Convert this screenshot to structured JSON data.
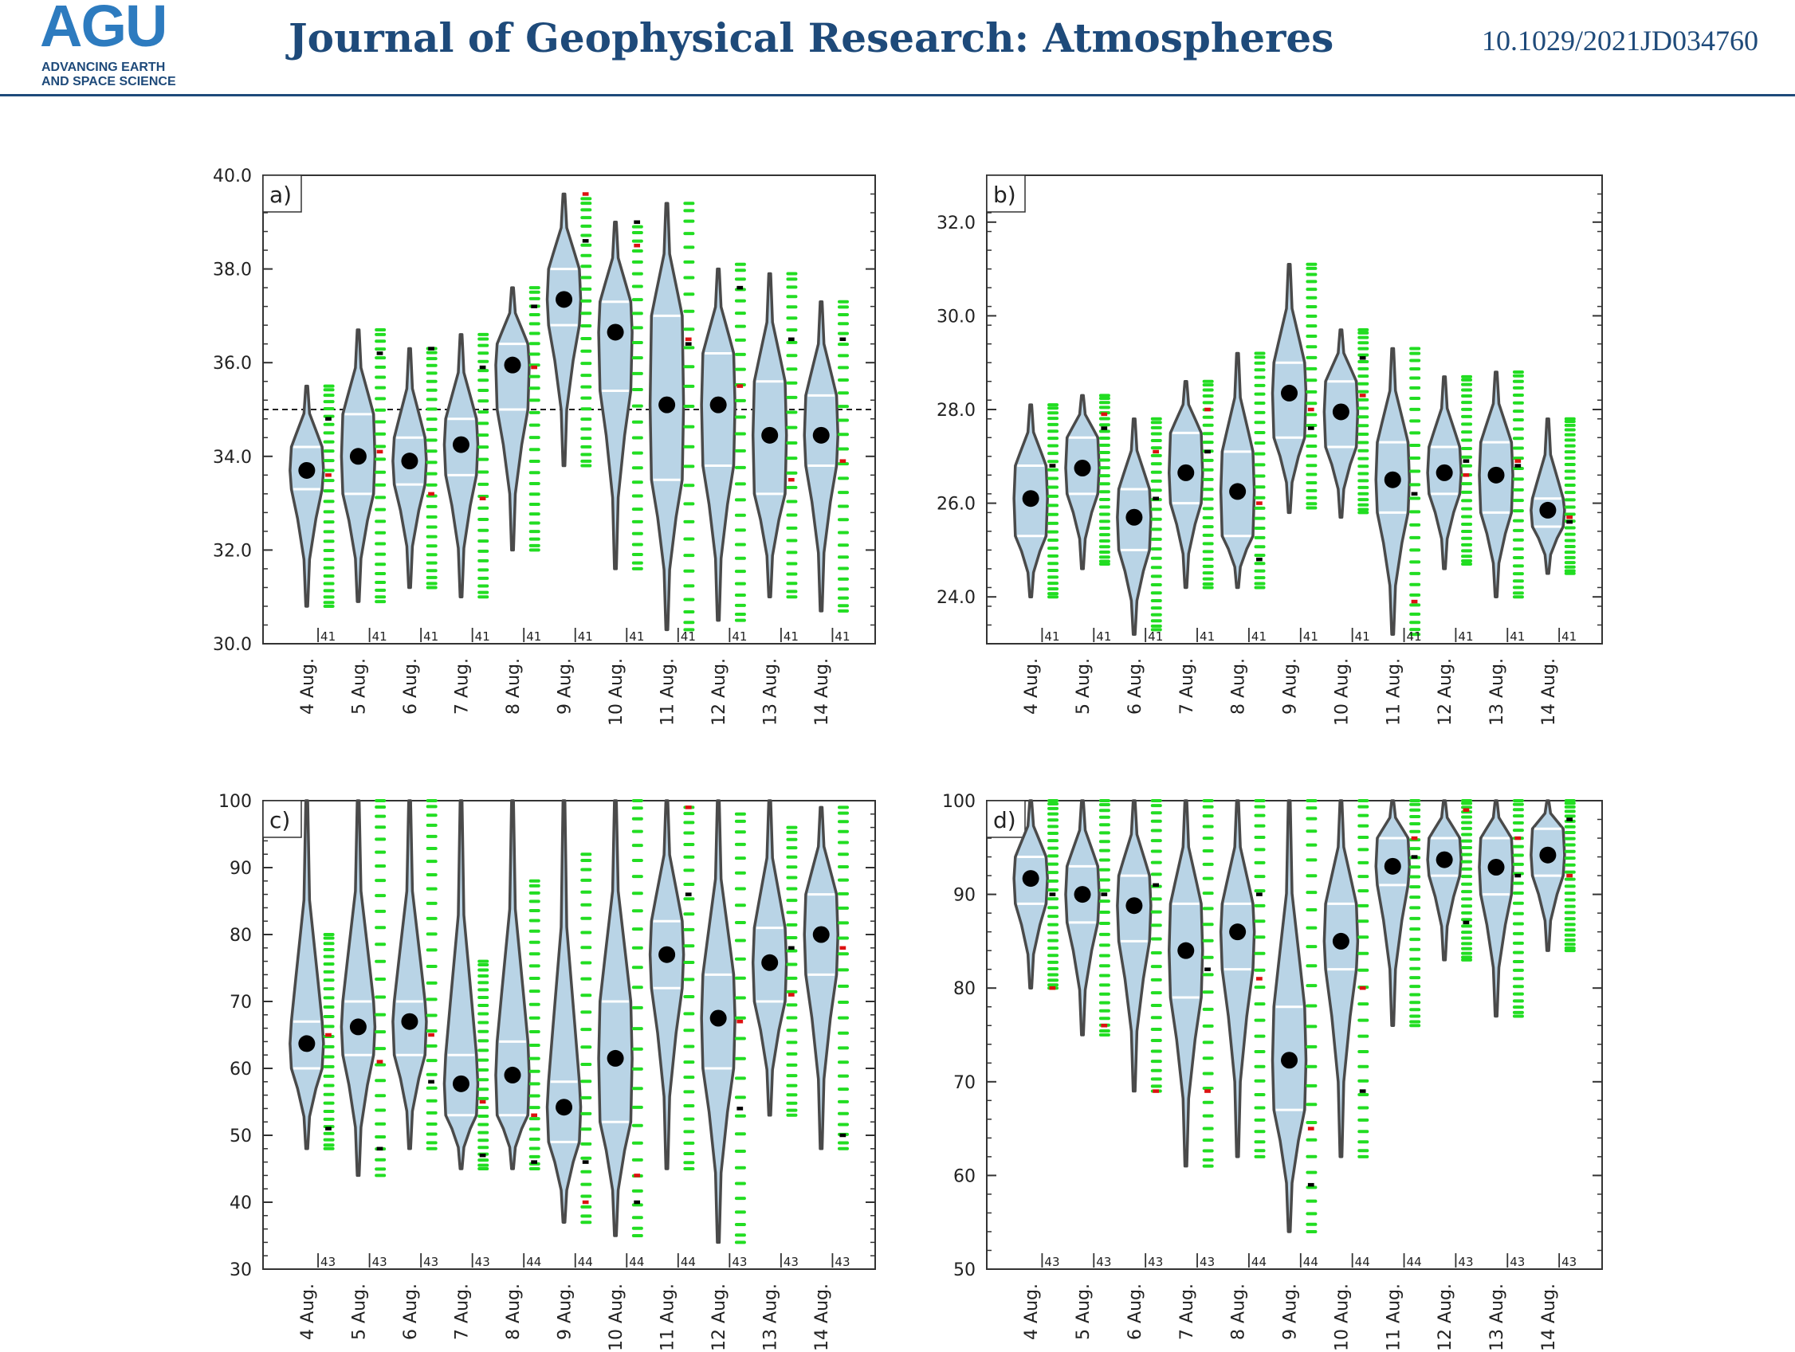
{
  "header": {
    "logo_text": "AGU",
    "logo_line1": "ADVANCING EARTH",
    "logo_line2": "AND SPACE SCIENCE",
    "journal": "Journal of Geophysical Research: Atmospheres",
    "doi": "10.1029/2021JD034760"
  },
  "colors": {
    "violin_fill": "#b9d4e6",
    "violin_edge": "#4a4a4a",
    "member": "#22dd22",
    "red_marker": "#dd1111",
    "black_marker": "#000000",
    "header_blue": "#1e4a7a"
  },
  "chart_data": [
    {
      "type": "violin",
      "panel_label": "a)",
      "categories": [
        "4 Aug.",
        "5 Aug.",
        "6 Aug.",
        "7 Aug.",
        "8 Aug.",
        "9 Aug.",
        "10 Aug.",
        "11 Aug.",
        "12 Aug.",
        "13 Aug.",
        "14 Aug."
      ],
      "ylim": [
        30,
        40
      ],
      "yticks": [
        30,
        32,
        34,
        36,
        38,
        40
      ],
      "ytick_labels": [
        "30.0",
        "32.0",
        "34.0",
        "36.0",
        "38.0",
        "40.0"
      ],
      "reference_line": 35,
      "counts": [
        "41",
        "41",
        "41",
        "41",
        "41",
        "41",
        "41",
        "41",
        "41",
        "41",
        "41"
      ],
      "min": [
        30.8,
        30.9,
        31.2,
        31.0,
        32.0,
        33.8,
        31.6,
        30.3,
        30.5,
        31.0,
        30.7
      ],
      "max": [
        35.5,
        36.7,
        36.3,
        36.6,
        37.6,
        39.6,
        39.0,
        39.4,
        38.0,
        37.9,
        37.3
      ],
      "mean": [
        33.7,
        34.0,
        33.9,
        34.25,
        35.95,
        37.35,
        36.65,
        35.1,
        35.1,
        34.45,
        34.45
      ],
      "q25": [
        33.3,
        33.2,
        33.4,
        33.6,
        35.0,
        36.8,
        35.4,
        33.5,
        33.8,
        33.2,
        33.8
      ],
      "q75": [
        34.2,
        34.9,
        34.4,
        34.8,
        36.4,
        38.0,
        37.3,
        37.0,
        36.2,
        35.6,
        35.3
      ],
      "red_marker": [
        33.6,
        34.1,
        33.2,
        33.1,
        35.9,
        39.6,
        38.5,
        36.5,
        35.5,
        33.5,
        33.9
      ],
      "black_marker": [
        34.8,
        36.2,
        36.3,
        35.9,
        37.2,
        38.6,
        39.0,
        36.4,
        37.6,
        36.5,
        36.5
      ],
      "members_range": [
        [
          30.8,
          35.5
        ],
        [
          30.9,
          36.7
        ],
        [
          31.2,
          36.3
        ],
        [
          31.0,
          36.6
        ],
        [
          32.0,
          37.6
        ],
        [
          33.8,
          39.5
        ],
        [
          31.6,
          38.9
        ],
        [
          30.3,
          39.4
        ],
        [
          30.5,
          38.1
        ],
        [
          31.0,
          37.9
        ],
        [
          30.7,
          37.3
        ]
      ]
    },
    {
      "type": "violin",
      "panel_label": "b)",
      "categories": [
        "4 Aug.",
        "5 Aug.",
        "6 Aug.",
        "7 Aug.",
        "8 Aug.",
        "9 Aug.",
        "10 Aug.",
        "11 Aug.",
        "12 Aug.",
        "13 Aug.",
        "14 Aug."
      ],
      "ylim": [
        23,
        33
      ],
      "yticks": [
        24,
        26,
        28,
        30,
        32
      ],
      "ytick_labels": [
        "24.0",
        "26.0",
        "28.0",
        "30.0",
        "32.0"
      ],
      "counts": [
        "41",
        "41",
        "41",
        "41",
        "41",
        "41",
        "41",
        "41",
        "41",
        "41",
        "41"
      ],
      "min": [
        24.0,
        24.6,
        23.2,
        24.2,
        24.2,
        25.8,
        25.7,
        23.2,
        24.6,
        24.0,
        24.5
      ],
      "max": [
        28.1,
        28.3,
        27.8,
        28.6,
        29.2,
        31.1,
        29.7,
        29.3,
        28.7,
        28.8,
        27.8
      ],
      "mean": [
        26.1,
        26.75,
        25.7,
        26.65,
        26.25,
        28.35,
        27.95,
        26.5,
        26.65,
        26.6,
        25.85
      ],
      "q25": [
        25.3,
        26.2,
        25.0,
        26.0,
        25.3,
        27.4,
        27.2,
        25.8,
        26.2,
        25.8,
        25.5
      ],
      "q75": [
        26.8,
        27.4,
        26.3,
        27.5,
        27.1,
        29.0,
        28.6,
        27.3,
        27.2,
        27.3,
        26.1
      ],
      "red_marker": [
        26.8,
        27.9,
        27.1,
        28.0,
        26.0,
        28.0,
        28.3,
        23.9,
        26.6,
        26.9,
        25.7
      ],
      "black_marker": [
        26.8,
        27.6,
        26.1,
        27.1,
        24.8,
        27.6,
        29.1,
        26.2,
        26.9,
        26.8,
        25.6
      ],
      "members_range": [
        [
          24.0,
          28.1
        ],
        [
          24.7,
          28.3
        ],
        [
          23.3,
          27.8
        ],
        [
          24.2,
          28.6
        ],
        [
          24.2,
          29.2
        ],
        [
          25.9,
          31.1
        ],
        [
          25.8,
          29.7
        ],
        [
          23.2,
          29.3
        ],
        [
          24.7,
          28.7
        ],
        [
          24.0,
          28.8
        ],
        [
          24.5,
          27.8
        ]
      ]
    },
    {
      "type": "violin",
      "panel_label": "c)",
      "categories": [
        "4 Aug.",
        "5 Aug.",
        "6 Aug.",
        "7 Aug.",
        "8 Aug.",
        "9 Aug.",
        "10 Aug.",
        "11 Aug.",
        "12 Aug.",
        "13 Aug.",
        "14 Aug."
      ],
      "ylim": [
        30,
        100
      ],
      "yticks": [
        30,
        40,
        50,
        60,
        70,
        80,
        90,
        100
      ],
      "ytick_labels": [
        "30",
        "40",
        "50",
        "60",
        "70",
        "80",
        "90",
        "100"
      ],
      "counts": [
        "43",
        "43",
        "43",
        "43",
        "44",
        "44",
        "44",
        "44",
        "43",
        "43",
        "43"
      ],
      "min": [
        48,
        44,
        48,
        45,
        45,
        37,
        35,
        45,
        34,
        53,
        48
      ],
      "max": [
        100,
        100,
        100,
        100,
        100,
        100,
        100,
        100,
        100,
        100,
        99
      ],
      "mean": [
        63.7,
        66.2,
        67.0,
        57.7,
        59.0,
        54.2,
        61.5,
        77.0,
        67.5,
        75.8,
        80.0
      ],
      "q25": [
        60,
        62,
        62,
        53,
        53,
        49,
        52,
        72,
        60,
        70,
        74
      ],
      "q75": [
        67,
        70,
        70,
        62,
        64,
        58,
        70,
        82,
        74,
        81,
        86
      ],
      "red_marker": [
        65,
        61,
        65,
        55,
        53,
        40,
        44,
        99,
        67,
        71,
        78
      ],
      "black_marker": [
        51,
        48,
        58,
        47,
        46,
        46,
        40,
        86,
        54,
        78,
        50
      ],
      "members_range": [
        [
          48,
          80
        ],
        [
          44,
          100
        ],
        [
          48,
          100
        ],
        [
          45,
          76
        ],
        [
          45,
          88
        ],
        [
          37,
          92
        ],
        [
          35,
          100
        ],
        [
          45,
          99
        ],
        [
          34,
          98
        ],
        [
          53,
          96
        ],
        [
          48,
          99
        ]
      ]
    },
    {
      "type": "violin",
      "panel_label": "d)",
      "categories": [
        "4 Aug.",
        "5 Aug.",
        "6 Aug.",
        "7 Aug.",
        "8 Aug.",
        "9 Aug.",
        "10 Aug.",
        "11 Aug.",
        "12 Aug.",
        "13 Aug.",
        "14 Aug."
      ],
      "ylim": [
        50,
        100
      ],
      "yticks": [
        50,
        60,
        70,
        80,
        90,
        100
      ],
      "ytick_labels": [
        "50",
        "60",
        "70",
        "80",
        "90",
        "100"
      ],
      "counts": [
        "43",
        "43",
        "43",
        "43",
        "44",
        "44",
        "44",
        "44",
        "43",
        "43",
        "43"
      ],
      "min": [
        80,
        75,
        69,
        61,
        62,
        54,
        62,
        76,
        83,
        77,
        84
      ],
      "max": [
        100,
        100,
        100,
        100,
        100,
        100,
        100,
        100,
        100,
        100,
        100
      ],
      "mean": [
        91.7,
        90.0,
        88.8,
        84.0,
        86.0,
        72.3,
        85.0,
        93.0,
        93.7,
        92.9,
        94.2
      ],
      "q25": [
        89,
        87,
        85,
        79,
        82,
        67,
        82,
        91,
        92,
        90,
        92
      ],
      "q75": [
        94,
        93,
        92,
        89,
        89,
        78,
        89,
        96,
        96,
        96,
        97
      ],
      "red_marker": [
        80,
        76,
        69,
        69,
        81,
        65,
        80,
        96,
        99,
        96,
        92
      ],
      "black_marker": [
        90,
        90,
        91,
        82,
        90,
        59,
        69,
        94,
        87,
        92,
        98
      ],
      "members_range": [
        [
          80,
          100
        ],
        [
          75,
          100
        ],
        [
          69,
          100
        ],
        [
          61,
          100
        ],
        [
          62,
          100
        ],
        [
          54,
          100
        ],
        [
          62,
          100
        ],
        [
          76,
          100
        ],
        [
          83,
          100
        ],
        [
          77,
          100
        ],
        [
          84,
          100
        ]
      ]
    }
  ]
}
